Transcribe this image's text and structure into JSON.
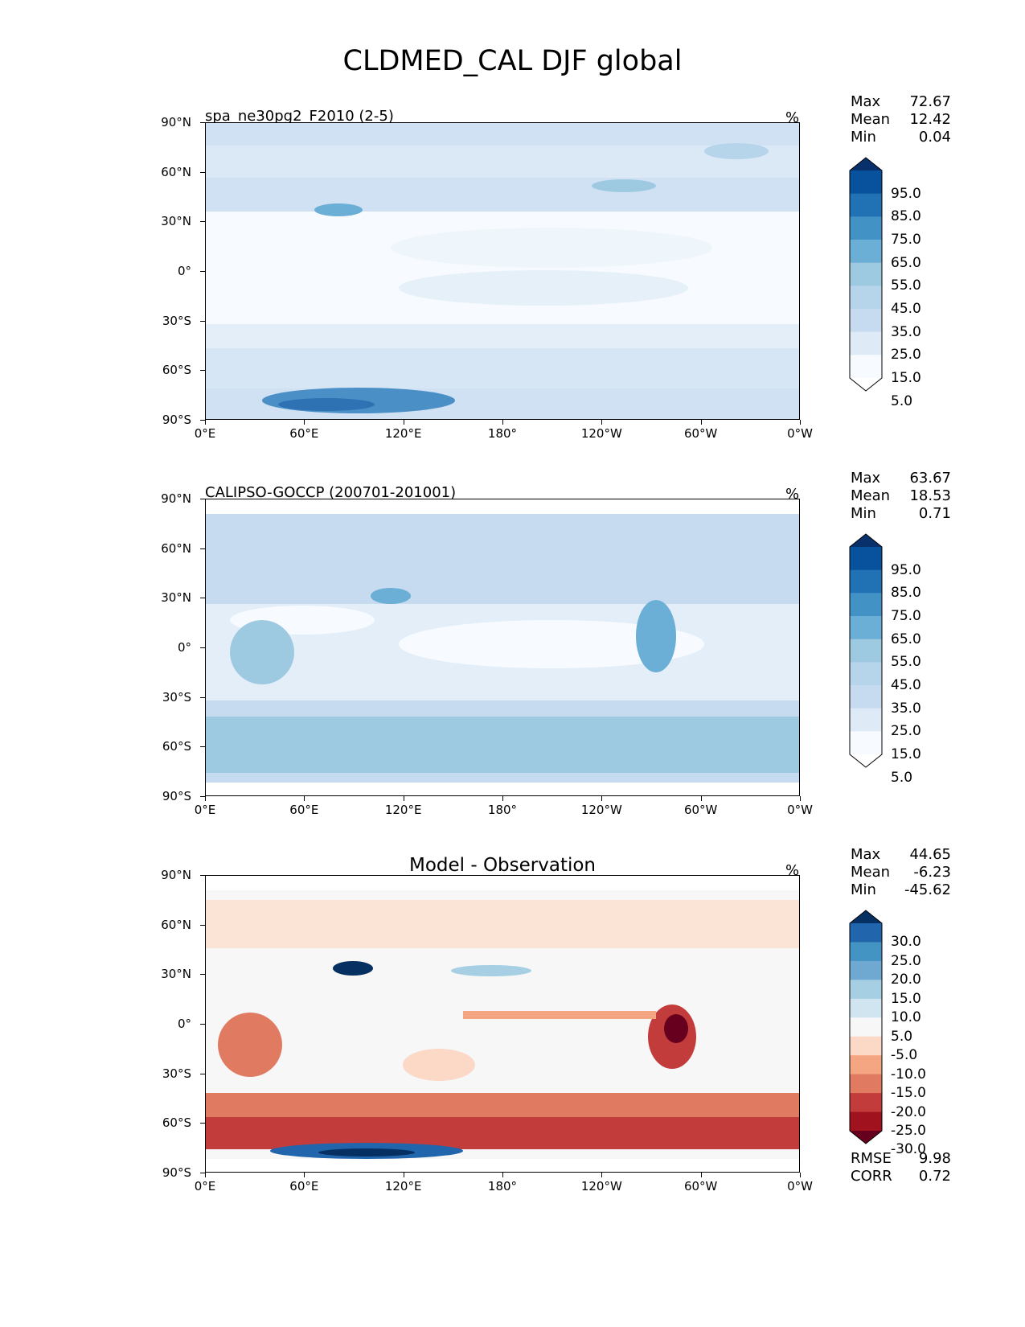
{
  "title": "CLDMED_CAL DJF global",
  "axes": {
    "lat_labels": [
      "90°N",
      "60°N",
      "30°N",
      "0°",
      "30°S",
      "60°S",
      "90°S"
    ],
    "lon_labels": [
      "0°E",
      "60°E",
      "120°E",
      "180°",
      "120°W",
      "60°W",
      "0°W"
    ]
  },
  "panels": [
    {
      "subtitle": "spa_ne30pg2_F2010 (2-5)",
      "unit": "%",
      "stats": [
        {
          "label": "Max",
          "value": "72.67"
        },
        {
          "label": "Mean",
          "value": "12.42"
        },
        {
          "label": "Min",
          "value": "0.04"
        }
      ],
      "colorbar": {
        "labels": [
          "95.0",
          "85.0",
          "75.0",
          "65.0",
          "55.0",
          "45.0",
          "35.0",
          "25.0",
          "15.0",
          "5.0"
        ],
        "colors": [
          "#08306b",
          "#08519c",
          "#2171b5",
          "#4292c6",
          "#6baed6",
          "#9ecae1",
          "#b6d4ea",
          "#c6dbef",
          "#deebf7",
          "#f7fbff",
          "#ffffff"
        ]
      },
      "field_colors": {
        "low": "#f7fbff",
        "mid": "#dbe9f6",
        "high": "#c6dbef",
        "peak": "#4292c6"
      }
    },
    {
      "subtitle": "CALIPSO-GOCCP (200701-201001)",
      "unit": "%",
      "stats": [
        {
          "label": "Max",
          "value": "63.67"
        },
        {
          "label": "Mean",
          "value": "18.53"
        },
        {
          "label": "Min",
          "value": "0.71"
        }
      ],
      "colorbar": {
        "labels": [
          "95.0",
          "85.0",
          "75.0",
          "65.0",
          "55.0",
          "45.0",
          "35.0",
          "25.0",
          "15.0",
          "5.0"
        ],
        "colors": [
          "#08306b",
          "#08519c",
          "#2171b5",
          "#4292c6",
          "#6baed6",
          "#9ecae1",
          "#b6d4ea",
          "#c6dbef",
          "#deebf7",
          "#f7fbff",
          "#ffffff"
        ]
      },
      "field_colors": {
        "low": "#f7fbff",
        "mid": "#dbe9f6",
        "high": "#b6d4ea",
        "peak": "#6baed6"
      }
    },
    {
      "subtitle": "Model - Observation",
      "unit": "%",
      "stats": [
        {
          "label": "Max",
          "value": "44.65"
        },
        {
          "label": "Mean",
          "value": "-6.23"
        },
        {
          "label": "Min",
          "value": "-45.62"
        }
      ],
      "colorbar": {
        "labels": [
          "30.0",
          "25.0",
          "20.0",
          "15.0",
          "10.0",
          "5.0",
          "-5.0",
          "-10.0",
          "-15.0",
          "-20.0",
          "-25.0",
          "-30.0"
        ],
        "colors": [
          "#053061",
          "#2166ac",
          "#4393c3",
          "#6fa9d2",
          "#a6cfe4",
          "#d1e5f0",
          "#f7f7f7",
          "#fbd9c6",
          "#f4a582",
          "#e07b62",
          "#c23c3c",
          "#a1121f",
          "#67001f"
        ]
      },
      "fit": [
        {
          "label": "RMSE",
          "value": "9.98"
        },
        {
          "label": "CORR",
          "value": "0.72"
        }
      ]
    }
  ]
}
